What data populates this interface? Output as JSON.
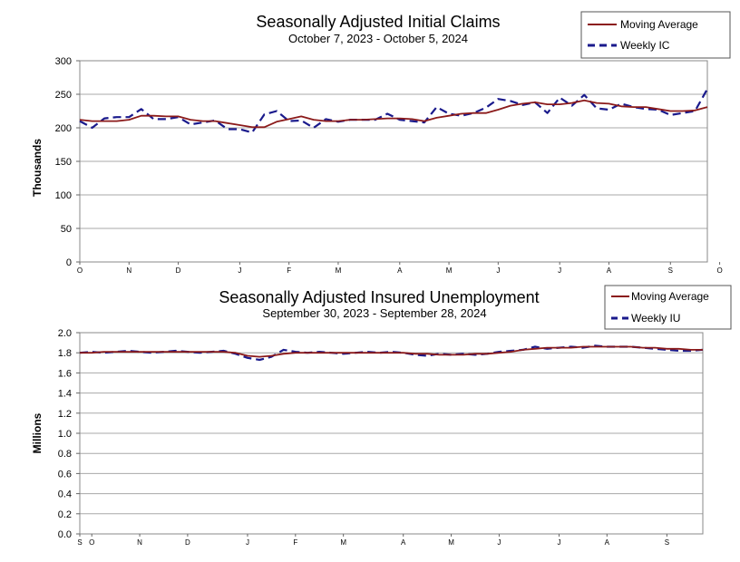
{
  "chart_data": [
    {
      "type": "line",
      "title": "Seasonally Adjusted Initial Claims",
      "subtitle": "October 7, 2023 - October 5, 2024",
      "ylabel": "Thousands",
      "xlabel": "",
      "ylim": [
        0,
        300
      ],
      "yticks": [
        "0",
        "50",
        "100",
        "150",
        "200",
        "250",
        "300"
      ],
      "ytick_values": [
        0,
        50,
        100,
        150,
        200,
        250,
        300
      ],
      "grid": true,
      "legend_position": "top-right",
      "month_labels": [
        {
          "label": "O",
          "week": 0
        },
        {
          "label": "N",
          "week": 4
        },
        {
          "label": "D",
          "week": 8
        },
        {
          "label": "J",
          "week": 13
        },
        {
          "label": "F",
          "week": 17
        },
        {
          "label": "M",
          "week": 21
        },
        {
          "label": "A",
          "week": 26
        },
        {
          "label": "M",
          "week": 30
        },
        {
          "label": "J",
          "week": 34
        },
        {
          "label": "J",
          "week": 39
        },
        {
          "label": "A",
          "week": 43
        },
        {
          "label": "S",
          "week": 48
        },
        {
          "label": "O",
          "week": 52
        }
      ],
      "series": [
        {
          "name": "Moving Average",
          "color": "#8b1a1a",
          "style": "solid",
          "values": [
            212,
            210,
            210,
            210,
            212,
            218,
            218,
            217,
            217,
            212,
            210,
            210,
            207,
            204,
            201,
            201,
            209,
            213,
            217,
            212,
            210,
            210,
            212,
            212,
            213,
            214,
            214,
            213,
            210,
            215,
            218,
            221,
            222,
            222,
            227,
            233,
            236,
            238,
            235,
            235,
            237,
            241,
            237,
            236,
            232,
            231,
            231,
            228,
            225,
            225,
            226,
            231
          ]
        },
        {
          "name": "Weekly IC",
          "color": "#1a1a8c",
          "style": "dashed",
          "values": [
            210,
            200,
            214,
            216,
            216,
            228,
            213,
            213,
            216,
            205,
            208,
            211,
            198,
            198,
            193,
            220,
            225,
            210,
            211,
            200,
            213,
            209,
            212,
            212,
            212,
            221,
            212,
            210,
            208,
            231,
            221,
            218,
            222,
            230,
            243,
            240,
            234,
            238,
            222,
            245,
            233,
            249,
            229,
            227,
            236,
            231,
            228,
            227,
            219,
            222,
            225,
            258
          ]
        }
      ]
    },
    {
      "type": "line",
      "title": "Seasonally Adjusted Insured Unemployment",
      "subtitle": "September 30, 2023 - September 28, 2024",
      "ylabel": "Millions",
      "xlabel": "",
      "ylim": [
        0,
        2.0
      ],
      "yticks": [
        "0.0",
        "0.2",
        "0.4",
        "0.6",
        "0.8",
        "1.0",
        "1.2",
        "1.4",
        "1.6",
        "1.8",
        "2.0"
      ],
      "ytick_values": [
        0,
        0.2,
        0.4,
        0.6,
        0.8,
        1.0,
        1.2,
        1.4,
        1.6,
        1.8,
        2.0
      ],
      "grid": true,
      "legend_position": "top-right",
      "month_labels": [
        {
          "label": "S",
          "week": 0
        },
        {
          "label": "O",
          "week": 1
        },
        {
          "label": "N",
          "week": 5
        },
        {
          "label": "D",
          "week": 9
        },
        {
          "label": "J",
          "week": 14
        },
        {
          "label": "F",
          "week": 18
        },
        {
          "label": "M",
          "week": 22
        },
        {
          "label": "A",
          "week": 27
        },
        {
          "label": "M",
          "week": 31
        },
        {
          "label": "J",
          "week": 35
        },
        {
          "label": "J",
          "week": 40
        },
        {
          "label": "A",
          "week": 44
        },
        {
          "label": "S",
          "week": 49
        }
      ],
      "series": [
        {
          "name": "Moving Average",
          "color": "#8b1a1a",
          "style": "solid",
          "values": [
            1.8,
            1.8,
            1.81,
            1.81,
            1.81,
            1.81,
            1.81,
            1.81,
            1.81,
            1.81,
            1.81,
            1.81,
            1.81,
            1.8,
            1.77,
            1.76,
            1.77,
            1.79,
            1.8,
            1.8,
            1.8,
            1.8,
            1.8,
            1.8,
            1.8,
            1.8,
            1.8,
            1.8,
            1.79,
            1.79,
            1.78,
            1.78,
            1.78,
            1.79,
            1.79,
            1.8,
            1.81,
            1.83,
            1.84,
            1.85,
            1.85,
            1.85,
            1.86,
            1.86,
            1.86,
            1.86,
            1.86,
            1.85,
            1.85,
            1.84,
            1.84,
            1.83,
            1.83
          ]
        },
        {
          "name": "Weekly IU",
          "color": "#1a1a8c",
          "style": "dashed",
          "values": [
            1.8,
            1.81,
            1.8,
            1.81,
            1.82,
            1.81,
            1.8,
            1.81,
            1.82,
            1.81,
            1.8,
            1.81,
            1.82,
            1.79,
            1.75,
            1.73,
            1.76,
            1.83,
            1.81,
            1.8,
            1.81,
            1.8,
            1.79,
            1.8,
            1.81,
            1.8,
            1.81,
            1.8,
            1.78,
            1.77,
            1.79,
            1.78,
            1.79,
            1.78,
            1.79,
            1.81,
            1.82,
            1.83,
            1.86,
            1.84,
            1.85,
            1.86,
            1.85,
            1.87,
            1.86,
            1.86,
            1.86,
            1.85,
            1.84,
            1.83,
            1.82,
            1.82,
            1.83
          ]
        }
      ]
    }
  ]
}
